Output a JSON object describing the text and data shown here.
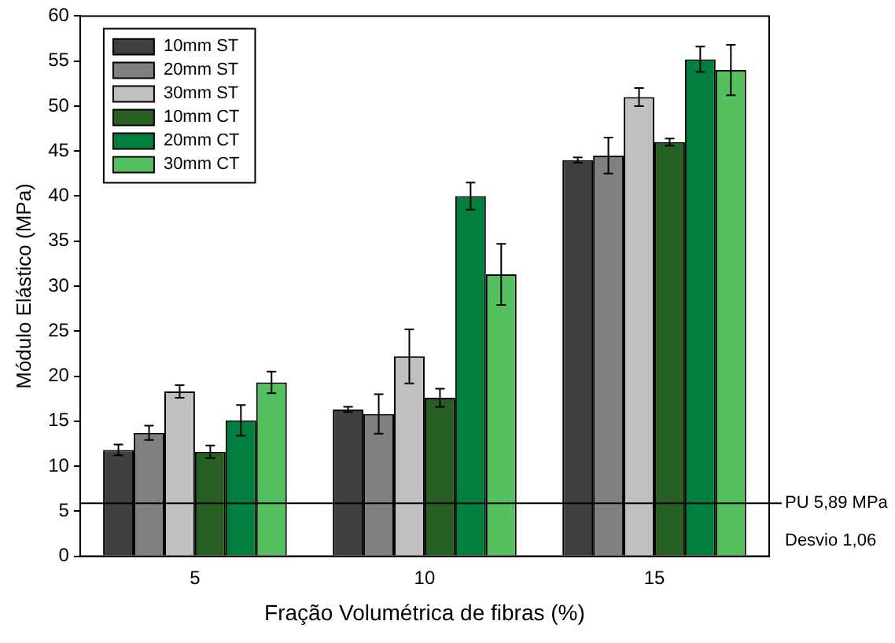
{
  "chart_data": {
    "type": "bar",
    "xlabel": "Fração Volumétrica de fibras (%)",
    "ylabel": "Módulo Elástico (MPa)",
    "categories": [
      "5",
      "10",
      "15"
    ],
    "series": [
      {
        "name": "10mm ST",
        "color": "#404040",
        "values": [
          11.8,
          16.3,
          44.0
        ],
        "errors": [
          0.6,
          0.3,
          0.3
        ]
      },
      {
        "name": "20mm ST",
        "color": "#808080",
        "values": [
          13.7,
          15.8,
          44.5
        ],
        "errors": [
          0.8,
          2.2,
          2.0
        ]
      },
      {
        "name": "30mm ST",
        "color": "#c0c0c0",
        "values": [
          18.3,
          22.2,
          51.0
        ],
        "errors": [
          0.7,
          3.0,
          1.0
        ]
      },
      {
        "name": "10mm CT",
        "color": "#275e22",
        "values": [
          11.6,
          17.6,
          46.0
        ],
        "errors": [
          0.7,
          1.0,
          0.4
        ]
      },
      {
        "name": "20mm CT",
        "color": "#007f3f",
        "values": [
          15.1,
          40.0,
          55.2
        ],
        "errors": [
          1.7,
          1.5,
          1.4
        ]
      },
      {
        "name": "30mm CT",
        "color": "#55c060",
        "values": [
          19.3,
          31.3,
          54.0
        ],
        "errors": [
          1.2,
          3.4,
          2.8
        ]
      }
    ],
    "ylim": [
      0,
      60
    ],
    "yticks": [
      0,
      5,
      10,
      15,
      20,
      25,
      30,
      35,
      40,
      45,
      50,
      55,
      60
    ],
    "ref_lines": [
      {
        "axis": "y",
        "value": 5.89,
        "label": "PU 5,89 MPa"
      }
    ],
    "annotations": [
      "Desvio 1,06"
    ],
    "legend": "top left",
    "grid": false
  }
}
